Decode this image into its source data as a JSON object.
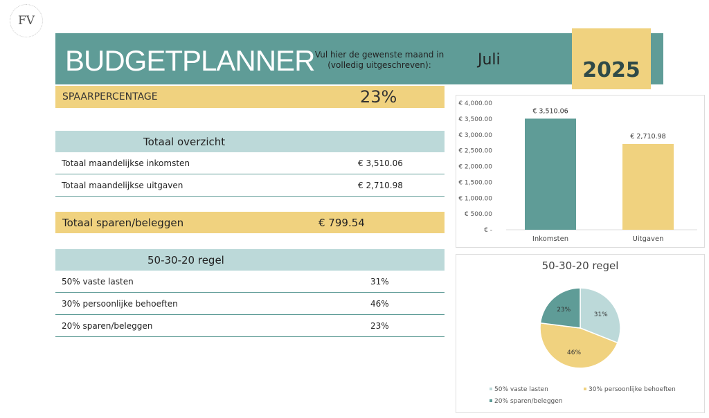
{
  "logo": {
    "text": "FV"
  },
  "header": {
    "title": "BUDGETPLANNER",
    "prompt": "Vul hier de gewenste maand in (volledig uitgeschreven):",
    "month": "Juli",
    "year": "2025"
  },
  "savings_rate": {
    "label": "SPAARPERCENTAGE",
    "value": "23%"
  },
  "overview": {
    "title": "Totaal overzicht",
    "rows": [
      {
        "label": "Totaal maandelijkse inkomsten",
        "value": "€ 3,510.06"
      },
      {
        "label": "Totaal maandelijkse uitgaven",
        "value": "€ 2,710.98"
      }
    ]
  },
  "total_savings": {
    "label": "Totaal sparen/beleggen",
    "value": "€ 799.54"
  },
  "rule": {
    "title": "50-30-20 regel",
    "rows": [
      {
        "label": "50% vaste lasten",
        "value": "31%"
      },
      {
        "label": "30% persoonlijke behoeften",
        "value": "46%"
      },
      {
        "label": "20% sparen/beleggen",
        "value": "23%"
      }
    ]
  },
  "colors": {
    "teal": "#5f9c97",
    "yellow": "#f0d27f",
    "light_teal": "#bcd9d9"
  },
  "chart_data": [
    {
      "type": "bar",
      "categories": [
        "Inkomsten",
        "Uitgaven"
      ],
      "values": [
        3510.06,
        2710.98
      ],
      "data_labels": [
        "€ 3,510.06",
        "€ 2,710.98"
      ],
      "ylim": [
        0,
        4000
      ],
      "yticks": [
        "€ -",
        "€ 500.00",
        "€ 1,000.00",
        "€ 1,500.00",
        "€ 2,000.00",
        "€ 2,500.00",
        "€ 3,000.00",
        "€ 3,500.00",
        "€ 4,000.00"
      ],
      "colors": [
        "#5f9c97",
        "#f0d27f"
      ],
      "grid": false
    },
    {
      "type": "pie",
      "title": "50-30-20 regel",
      "categories": [
        "50% vaste lasten",
        "30% persoonlijke behoeften",
        "20% sparen/beleggen"
      ],
      "values": [
        31,
        46,
        23
      ],
      "data_labels": [
        "31%",
        "46%",
        "23%"
      ],
      "colors": [
        "#bcd9d9",
        "#f0d27f",
        "#5f9c97"
      ],
      "legend": "bottom"
    }
  ]
}
